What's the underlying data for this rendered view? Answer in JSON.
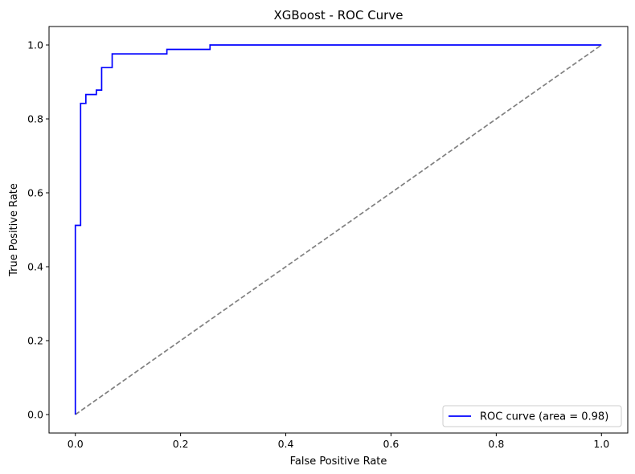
{
  "chart_data": {
    "type": "line",
    "title": "XGBoost - ROC Curve",
    "xlabel": "False Positive Rate",
    "ylabel": "True Positive Rate",
    "xlim": [
      -0.05,
      1.05
    ],
    "ylim": [
      -0.05,
      1.05
    ],
    "xticks": [
      0.0,
      0.2,
      0.4,
      0.6,
      0.8,
      1.0
    ],
    "yticks": [
      0.0,
      0.2,
      0.4,
      0.6,
      0.8,
      1.0
    ],
    "xtick_labels": [
      "0.0",
      "0.2",
      "0.4",
      "0.6",
      "0.8",
      "1.0"
    ],
    "ytick_labels": [
      "0.0",
      "0.2",
      "0.4",
      "0.6",
      "0.8",
      "1.0"
    ],
    "grid": false,
    "legend_position": "lower-right",
    "series": [
      {
        "name": "ROC curve (area = 0.98)",
        "color": "#0000ff",
        "style": "solid",
        "x": [
          0.0,
          0.0,
          0.0,
          0.01,
          0.01,
          0.02,
          0.02,
          0.04,
          0.04,
          0.05,
          0.05,
          0.07,
          0.07,
          0.174,
          0.174,
          0.256,
          0.256,
          1.0
        ],
        "y": [
          0.0,
          0.0,
          0.512,
          0.512,
          0.842,
          0.842,
          0.866,
          0.866,
          0.878,
          0.878,
          0.939,
          0.939,
          0.976,
          0.976,
          0.988,
          0.988,
          1.0,
          1.0
        ]
      },
      {
        "color": "#808080",
        "style": "dashed",
        "x": [
          0.0,
          1.0
        ],
        "y": [
          0.0,
          1.0
        ]
      }
    ]
  }
}
